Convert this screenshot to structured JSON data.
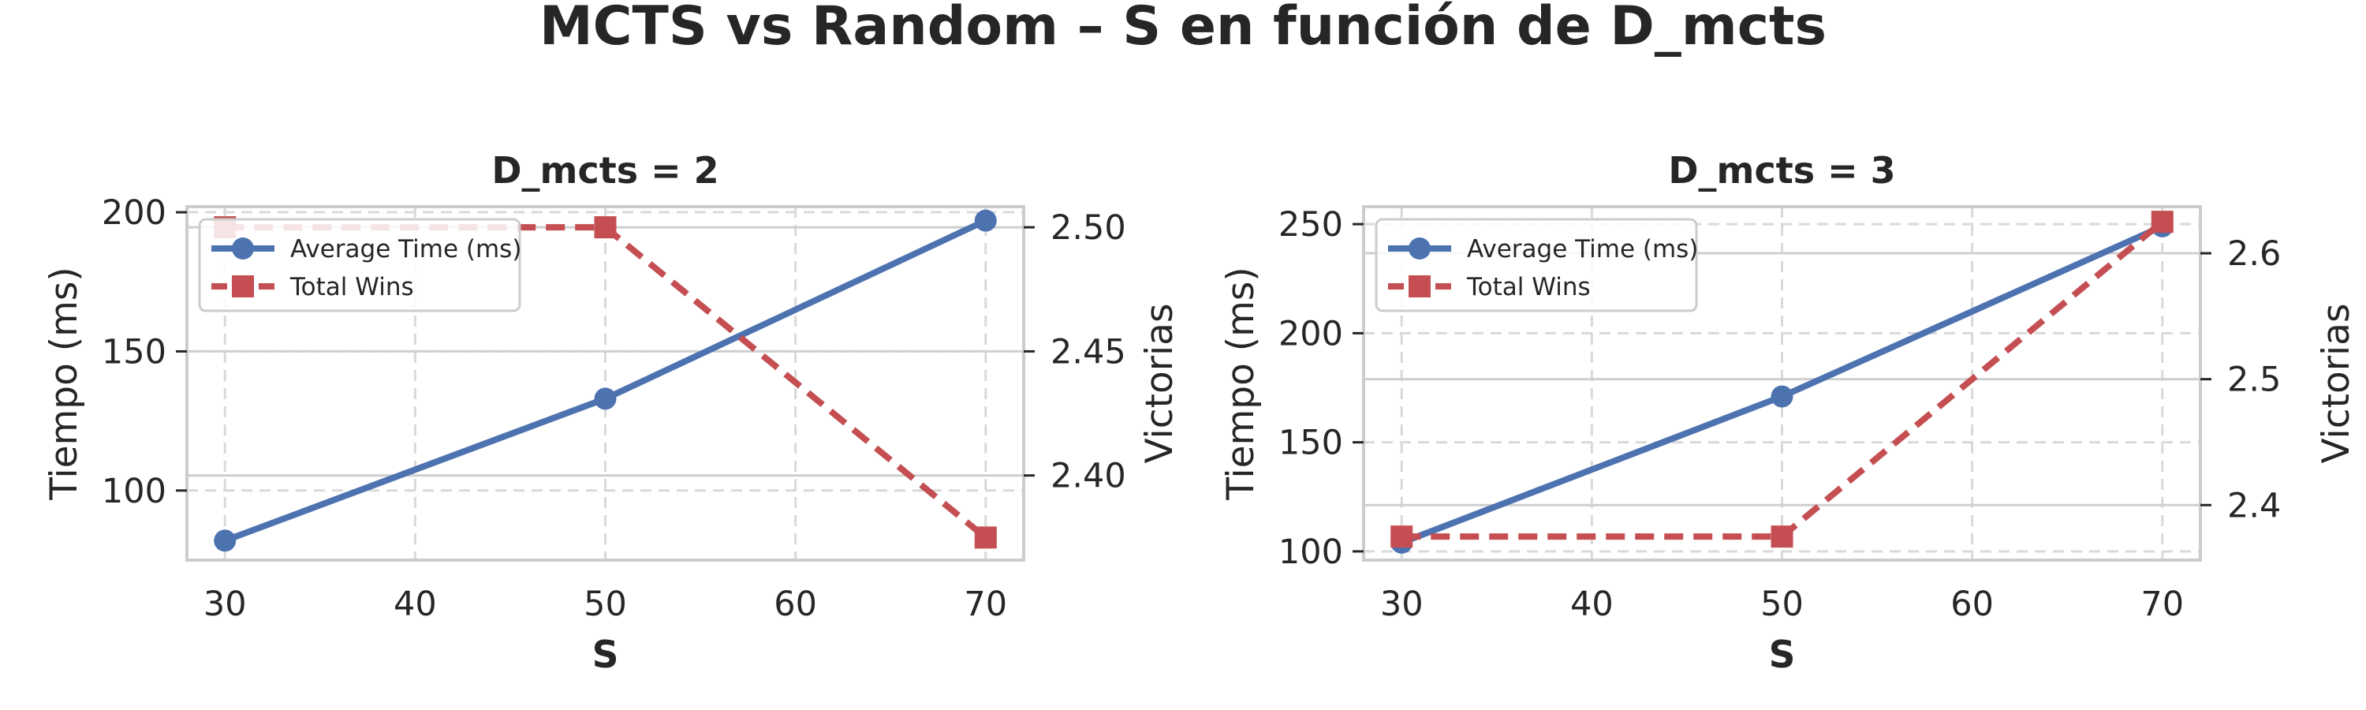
{
  "figure": {
    "title": "MCTS vs Random – S en función de D_mcts"
  },
  "colors": {
    "time_series": "#4C72B0",
    "wins_series": "#C44E52",
    "grid": "#d9d9d9",
    "axis": "#cccccc",
    "text": "#262626"
  },
  "chart_data": [
    {
      "type": "line",
      "title": "D_mcts = 2",
      "xlabel": "S",
      "ylabel": "Tiempo (ms)",
      "y2label": "Victorias",
      "x": [
        30,
        50,
        70
      ],
      "xticks": [
        "30",
        "40",
        "50",
        "60",
        "70"
      ],
      "xlim": [
        28,
        72
      ],
      "ylim": [
        75,
        202
      ],
      "yticks": [
        "100",
        "150",
        "200"
      ],
      "y2lim": [
        2.3659,
        2.5083
      ],
      "y2ticks": [
        "2.40",
        "2.45",
        "2.50"
      ],
      "grid": true,
      "legend_position": "upper-left",
      "series": [
        {
          "name": "Average Time (ms)",
          "axis": "left",
          "style": "solid",
          "marker": "circle",
          "values": [
            82,
            133,
            197
          ]
        },
        {
          "name": "Total Wins",
          "axis": "right",
          "style": "dashed",
          "marker": "square",
          "values": [
            2.5,
            2.5,
            2.375
          ]
        }
      ]
    },
    {
      "type": "line",
      "title": "D_mcts = 3",
      "xlabel": "S",
      "ylabel": "Tiempo (ms)",
      "y2label": "Victorias",
      "x": [
        30,
        50,
        70
      ],
      "xticks": [
        "30",
        "40",
        "50",
        "60",
        "70"
      ],
      "xlim": [
        28,
        72
      ],
      "ylim": [
        96,
        258
      ],
      "yticks": [
        "100",
        "150",
        "200",
        "250"
      ],
      "y2lim": [
        2.3563,
        2.637
      ],
      "y2ticks": [
        "2.4",
        "2.5",
        "2.6"
      ],
      "grid": true,
      "legend_position": "upper-left",
      "series": [
        {
          "name": "Average Time (ms)",
          "axis": "left",
          "style": "solid",
          "marker": "circle",
          "values": [
            104,
            171,
            249
          ]
        },
        {
          "name": "Total Wins",
          "axis": "right",
          "style": "dashed",
          "marker": "square",
          "values": [
            2.375,
            2.375,
            2.625
          ]
        }
      ]
    }
  ]
}
